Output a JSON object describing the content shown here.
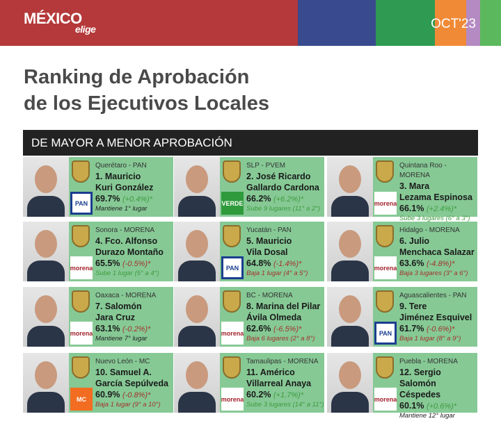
{
  "header": {
    "brand": "MÉXICO",
    "brand_sub": "elige",
    "date": "OCT'23",
    "band_colors": [
      "#b5393a",
      "#3a4a8e",
      "#2e9a52",
      "#f08a36",
      "#b48ac2",
      "#5cb85c"
    ]
  },
  "title_line1": "Ranking de Aprobación",
  "title_line2": "de los Ejecutivos Locales",
  "subtitle": "DE MAYOR A MENOR APROBACIÓN",
  "colors": {
    "card": "#86c995",
    "up": "#3e9b3e",
    "down": "#a3322c",
    "same": "#222222"
  },
  "ranking": [
    {
      "state": "Querétaro - PAN",
      "name1": "1. Mauricio",
      "name2": "Kuri González",
      "pct": "69.7%",
      "change": "(+0.4%)*",
      "trend": "up",
      "move": "Mantiene 1° lugar",
      "move_trend": "same",
      "party": "PAN"
    },
    {
      "state": "SLP - PVEM",
      "name1": "2. José Ricardo",
      "name2": "Gallardo Cardona",
      "pct": "66.2%",
      "change": "(+6.2%)*",
      "trend": "up",
      "move": "Sube 9 lugares (11° a 2°)",
      "move_trend": "up",
      "party": "VERDE"
    },
    {
      "state": "Quintana Roo - MORENA",
      "name1": "3. Mara",
      "name2": "Lezama Espinosa",
      "pct": "66.1%",
      "change": "(+2.4%)*",
      "trend": "up",
      "move": "Sube 3 lugares (6° a 3°)",
      "move_trend": "up",
      "party": "morena"
    },
    {
      "state": "Sonora - MORENA",
      "name1": "4. Fco. Alfonso",
      "name2": "Durazo Montaño",
      "pct": "65.5%",
      "change": "(-0.5%)*",
      "trend": "down",
      "move": "Sube 1 lugar (5° a 4°)",
      "move_trend": "up",
      "party": "morena"
    },
    {
      "state": "Yucatán - PAN",
      "name1": "5. Mauricio",
      "name2": "Vila Dosal",
      "pct": "64.8%",
      "change": "(-1.4%)*",
      "trend": "down",
      "move": "Baja 1 lugar (4° a 5°)",
      "move_trend": "down",
      "party": "PAN"
    },
    {
      "state": "Hidalgo - MORENA",
      "name1": "6. Julio",
      "name2": "Menchaca Salazar",
      "pct": "63.6%",
      "change": "(-4.8%)*",
      "trend": "down",
      "move": "Baja 3 lugares (3° a 6°)",
      "move_trend": "down",
      "party": "morena"
    },
    {
      "state": "Oaxaca - MORENA",
      "name1": "7. Salomón",
      "name2": "Jara Cruz",
      "pct": "63.1%",
      "change": "(-0.2%)*",
      "trend": "down",
      "move": "Mantiene 7° lugar",
      "move_trend": "same",
      "party": "morena"
    },
    {
      "state": "BC - MORENA",
      "name1": "8. Marina del Pilar",
      "name2": "Ávila Olmeda",
      "pct": "62.6%",
      "change": "(-6.5%)*",
      "trend": "down",
      "move": "Baja 6 lugares (2° a 8°)",
      "move_trend": "down",
      "party": "morena"
    },
    {
      "state": "Aguascalientes - PAN",
      "name1": "9. Tere",
      "name2": "Jiménez Esquivel",
      "pct": "61.7%",
      "change": "(-0.6%)*",
      "trend": "down",
      "move": "Baja 1 lugar (8° a 9°)",
      "move_trend": "down",
      "party": "PAN"
    },
    {
      "state": "Nuevo León - MC",
      "name1": "10. Samuel A.",
      "name2": "García Sepúlveda",
      "pct": "60.9%",
      "change": "(-0.8%)*",
      "trend": "down",
      "move": "Baja 1 lugar (9° a 10°)",
      "move_trend": "down",
      "party": "MC"
    },
    {
      "state": "Tamaulipas - MORENA",
      "name1": "11. Américo",
      "name2": "Villarreal Anaya",
      "pct": "60.2%",
      "change": "(+1.7%)*",
      "trend": "up",
      "move": "Sube 3 lugares (14° a 11°)",
      "move_trend": "up",
      "party": "morena"
    },
    {
      "state": "Puebla - MORENA",
      "name1": "12. Sergio Salomón",
      "name2": "Céspedes",
      "pct": "60.1%",
      "change": "(+0.6%)*",
      "trend": "up",
      "move": "Mantiene 12° lugar",
      "move_trend": "same",
      "party": "morena"
    }
  ]
}
